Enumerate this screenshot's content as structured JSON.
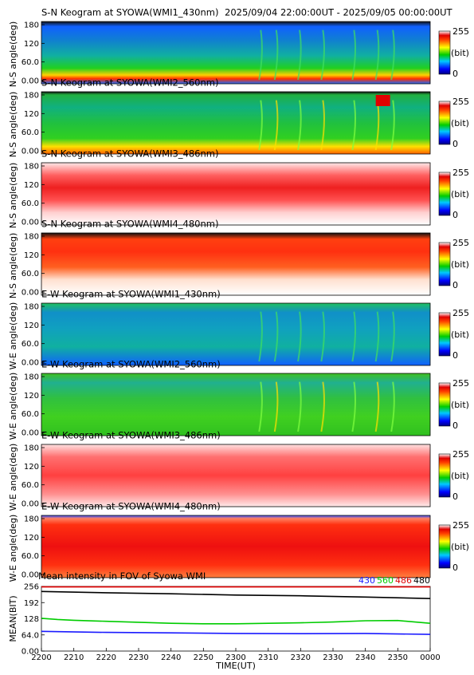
{
  "header": {
    "date_range": "2025/09/04 22:00:00UT - 2025/09/05 00:00:00UT"
  },
  "colorbar": {
    "max_label": "255",
    "unit_label": "(bit)",
    "min_label": "0"
  },
  "colors": {
    "wl430": "#1a1aff",
    "wl560": "#00cc00",
    "wl486": "#e00000",
    "wl480": "#000000"
  },
  "chart_data": [
    {
      "type": "heatmap",
      "title": "S-N Keogram at SYOWA(WMI1_430nm)",
      "ylabel": "N-S angle(deg)",
      "ylim": [
        0,
        180
      ],
      "yticks": [
        "180",
        "120",
        "60.0",
        "0.00"
      ],
      "base_colormap_value": 95,
      "features": "bright band near 25-35 deg fading after 2240; green band 0-60 deg; weak arcs near 2335-2345"
    },
    {
      "type": "heatmap",
      "title": "S-N Keogram at SYOWA(WMI2_560nm)",
      "ylabel": "N-S angle(deg)",
      "ylim": [
        0,
        180
      ],
      "yticks": [
        "180",
        "120",
        "60.0",
        "0.00"
      ],
      "base_colormap_value": 110,
      "features": "bright band near 20-35 deg moving down; aurora arcs 2315-2355; red patch near 2340 at 150-175 deg"
    },
    {
      "type": "heatmap",
      "title": "S-N Keogram at SYOWA(WMI3_486nm)",
      "ylabel": "N-S angle(deg)",
      "ylim": [
        0,
        180
      ],
      "yticks": [
        "180",
        "120",
        "60.0",
        "0.00"
      ],
      "base_colormap_value": 250,
      "features": "red band centred ~100 deg, fading to white toward 0 and 180 deg"
    },
    {
      "type": "heatmap",
      "title": "S-N Keogram at SYOWA(WMI4_480nm)",
      "ylabel": "N-S angle(deg)",
      "ylim": [
        0,
        180
      ],
      "yticks": [
        "180",
        "120",
        "60.0",
        "0.00"
      ],
      "base_colormap_value": 235,
      "features": "red-orange band 80-170 deg, white below ~50 deg"
    },
    {
      "type": "heatmap",
      "title": "E-W Keogram at SYOWA(WMI1_430nm)",
      "ylabel": "W-E angle(deg)",
      "ylim": [
        0,
        180
      ],
      "yticks": [
        "180",
        "120",
        "60.0",
        "0.00"
      ],
      "base_colormap_value": 85,
      "features": "blue-green background; green arcs 2315-2355"
    },
    {
      "type": "heatmap",
      "title": "E-W Keogram at SYOWA(WMI2_560nm)",
      "ylabel": "W-E angle(deg)",
      "ylim": [
        0,
        180
      ],
      "yticks": [
        "180",
        "120",
        "60.0",
        "0.00"
      ],
      "base_colormap_value": 100,
      "features": "green background; bright yellow-red arcs near 2318-2322 and 2335-2355"
    },
    {
      "type": "heatmap",
      "title": "E-W Keogram at SYOWA(WMI3_486nm)",
      "ylabel": "W-E angle(deg)",
      "ylim": [
        0,
        180
      ],
      "yticks": [
        "180",
        "120",
        "60.0",
        "0.00"
      ],
      "base_colormap_value": 250,
      "features": "pink/red with white edges top and bottom"
    },
    {
      "type": "heatmap",
      "title": "E-W Keogram at SYOWA(WMI4_480nm)",
      "ylabel": "W-E angle(deg)",
      "ylim": [
        0,
        180
      ],
      "yticks": [
        "180",
        "120",
        "60.0",
        "0.00"
      ],
      "base_colormap_value": 235,
      "features": "red-orange across most angles"
    },
    {
      "type": "line",
      "title": "Mean intensity in FOV of Syowa WMI",
      "ylabel": "MEAN(BIT)",
      "xlabel": "TIME(UT)",
      "ylim": [
        0,
        256
      ],
      "yticks": [
        "256",
        "192",
        "128",
        "64.0",
        "0.00"
      ],
      "xlim": [
        0,
        120
      ],
      "xticks": [
        "2200",
        "2210",
        "2220",
        "2230",
        "2240",
        "2250",
        "2300",
        "2310",
        "2320",
        "2330",
        "2340",
        "2350",
        "0000"
      ],
      "series": [
        {
          "name": "430",
          "color": "#1a1aff",
          "x": [
            0,
            20,
            40,
            60,
            80,
            100,
            120
          ],
          "values": [
            78,
            74,
            72,
            70,
            69,
            70,
            66
          ]
        },
        {
          "name": "560",
          "color": "#00cc00",
          "x": [
            0,
            5,
            10,
            20,
            30,
            40,
            50,
            60,
            70,
            80,
            90,
            100,
            110,
            120
          ],
          "values": [
            130,
            125,
            122,
            118,
            114,
            110,
            108,
            108,
            110,
            112,
            115,
            120,
            121,
            110
          ]
        },
        {
          "name": "486",
          "color": "#e00000",
          "x": [
            0,
            20,
            40,
            60,
            80,
            100,
            120
          ],
          "values": [
            254,
            254,
            254,
            254,
            254,
            254,
            254
          ]
        },
        {
          "name": "480",
          "color": "#000000",
          "x": [
            0,
            20,
            40,
            60,
            80,
            100,
            120
          ],
          "values": [
            236,
            231,
            227,
            222,
            219,
            214,
            208
          ]
        }
      ]
    }
  ]
}
